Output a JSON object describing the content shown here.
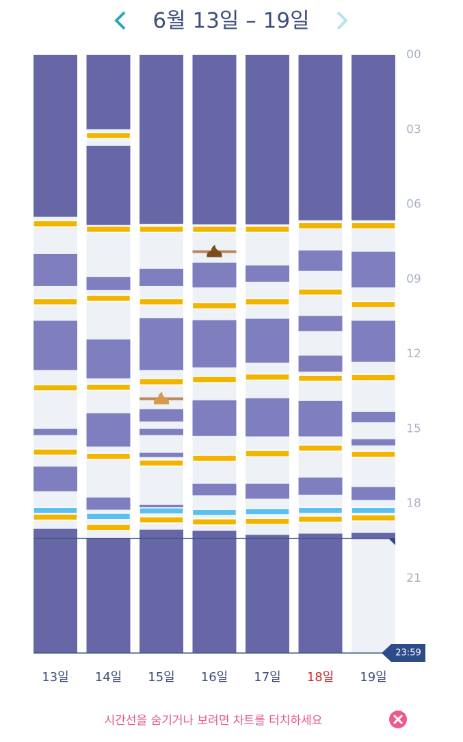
{
  "chart_data": {
    "type": "timeline",
    "title": "6월 13일 – 19일",
    "ylim": [
      0,
      24
    ],
    "yticks": [
      {
        "value": 0,
        "label": "00"
      },
      {
        "value": 3,
        "label": "03"
      },
      {
        "value": 6,
        "label": "06"
      },
      {
        "value": 9,
        "label": "09"
      },
      {
        "value": 12,
        "label": "12"
      },
      {
        "value": 15,
        "label": "15"
      },
      {
        "value": 18,
        "label": "18"
      },
      {
        "value": 21,
        "label": "21"
      }
    ],
    "end_label": "23:59",
    "now": 19.4,
    "night_color": "#6766a6",
    "nap_color": "#7f7fc0",
    "awake_color": "#eef2f6",
    "feed_color": "#f3b400",
    "bath_color": "#5bc0ee",
    "poop_color": "#b9875a",
    "hint": "시간선을 숨기거나 보려면 차트를 터치하세요",
    "days": [
      {
        "name": "13일",
        "label_color": "#3d4e7a",
        "night": [
          [
            0,
            6.5
          ],
          [
            19.02,
            24
          ]
        ],
        "naps": [
          [
            7.99,
            9.28
          ],
          [
            10.67,
            12.65
          ],
          [
            15.01,
            15.26
          ],
          [
            16.52,
            17.51
          ]
        ],
        "feeds": [
          6.78,
          9.91,
          13.36,
          15.94,
          18.55
        ],
        "baths": [
          18.28
        ],
        "poops": []
      },
      {
        "name": "14일",
        "label_color": "#3d4e7a",
        "night": [
          [
            0,
            2.99
          ],
          [
            3.65,
            6.83
          ],
          [
            19.4,
            24
          ]
        ],
        "naps": [
          [
            8.92,
            9.44
          ],
          [
            11.42,
            12.98
          ],
          [
            14.38,
            15.72
          ],
          [
            17.76,
            18.25
          ]
        ],
        "feeds": [
          3.24,
          7.0,
          9.77,
          13.34,
          16.11,
          18.96
        ],
        "baths": [
          18.52
        ],
        "poops": []
      },
      {
        "name": "15일",
        "label_color": "#3d4e7a",
        "night": [
          [
            0,
            6.78
          ],
          [
            19.05,
            24
          ]
        ],
        "naps": [
          [
            8.59,
            9.28
          ],
          [
            10.57,
            12.65
          ],
          [
            14.22,
            14.71
          ],
          [
            15.01,
            15.26
          ],
          [
            15.97,
            16.14
          ],
          [
            18.06,
            18.22
          ]
        ],
        "feeds": [
          7.0,
          9.91,
          13.12,
          16.38,
          18.66
        ],
        "baths": [
          18.3
        ],
        "poops": [
          13.8
        ]
      },
      {
        "name": "16일",
        "label_color": "#3d4e7a",
        "night": [
          [
            0,
            6.8
          ],
          [
            19.1,
            24
          ]
        ],
        "naps": [
          [
            8.34,
            9.33
          ],
          [
            10.65,
            12.54
          ],
          [
            13.86,
            15.29
          ],
          [
            17.21,
            17.67
          ]
        ],
        "feeds": [
          7.0,
          10.07,
          13.03,
          16.19,
          18.74
        ],
        "baths": [
          18.36
        ],
        "poops": [
          7.9
        ]
      },
      {
        "name": "17일",
        "label_color": "#3d4e7a",
        "night": [
          [
            0,
            6.8
          ],
          [
            19.26,
            24
          ]
        ],
        "naps": [
          [
            8.45,
            9.11
          ],
          [
            10.59,
            12.35
          ],
          [
            13.78,
            15.31
          ],
          [
            17.21,
            17.81
          ]
        ],
        "feeds": [
          7.0,
          9.91,
          12.93,
          16.0,
          18.72
        ],
        "baths": [
          18.33
        ],
        "poops": []
      },
      {
        "name": "18일",
        "label_color": "#d0262c",
        "night": [
          [
            0,
            6.64
          ],
          [
            19.21,
            24
          ]
        ],
        "naps": [
          [
            7.85,
            8.67
          ],
          [
            10.48,
            11.09
          ],
          [
            12.07,
            12.71
          ],
          [
            13.89,
            15.31
          ],
          [
            16.96,
            17.65
          ]
        ],
        "feeds": [
          6.86,
          9.52,
          12.98,
          15.78,
          18.63
        ],
        "baths": [
          18.28
        ],
        "poops": []
      },
      {
        "name": "19일",
        "label_color": "#3d4e7a",
        "night": [
          [
            0,
            6.64
          ],
          [
            19.18,
            19.43
          ]
        ],
        "naps": [
          [
            7.9,
            9.33
          ],
          [
            10.67,
            12.32
          ],
          [
            14.33,
            14.74
          ],
          [
            15.42,
            15.67
          ],
          [
            17.34,
            17.86
          ]
        ],
        "feeds": [
          6.86,
          10.02,
          12.95,
          16.03,
          18.58
        ],
        "baths": [
          18.28
        ],
        "poops": []
      }
    ]
  }
}
